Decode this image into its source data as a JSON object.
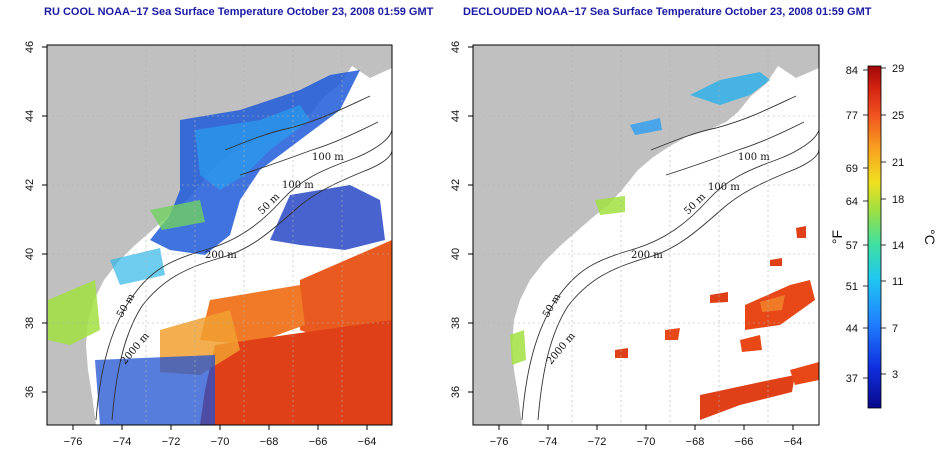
{
  "panels": [
    {
      "id": "left",
      "title": "RU COOL NOAA−17 Sea Surface Temperature October 23, 2008 01:59 GMT",
      "contour_labels": [
        "100 m",
        "100 m",
        "50 m",
        "200 m",
        "50 m",
        "2000 m"
      ]
    },
    {
      "id": "right",
      "title": "DECLOUDED NOAA−17 Sea Surface Temperature October 23, 2008 01:59 GMT",
      "contour_labels": [
        "100 m",
        "100 m",
        "50 m",
        "200 m",
        "50 m",
        "2000 m"
      ]
    }
  ],
  "axes": {
    "x_ticks": [
      "−76",
      "−74",
      "−72",
      "−70",
      "−68",
      "−66",
      "−64"
    ],
    "y_ticks": [
      "46",
      "44",
      "42",
      "40",
      "38",
      "36"
    ],
    "lon_range": [
      -77.2,
      -62.9
    ],
    "lat_range": [
      35.0,
      46.0
    ]
  },
  "colorbar": {
    "f_label": "°F",
    "c_label": "°C",
    "f_ticks": [
      "84",
      "77",
      "69",
      "64",
      "57",
      "51",
      "44",
      "37"
    ],
    "c_ticks": [
      "29",
      "25",
      "21",
      "18",
      "14",
      "11",
      "7",
      "3"
    ],
    "colors": [
      "#08088a",
      "#1030e0",
      "#2080ff",
      "#20c8f0",
      "#40e0a0",
      "#a0e040",
      "#f0e020",
      "#f8a020",
      "#f05020",
      "#d02010",
      "#a00808"
    ]
  },
  "colors": {
    "land": "#c0c0c0",
    "water_masked": "#ffffff",
    "title": "#1a1aa6",
    "grid": "#b0b0b0"
  }
}
